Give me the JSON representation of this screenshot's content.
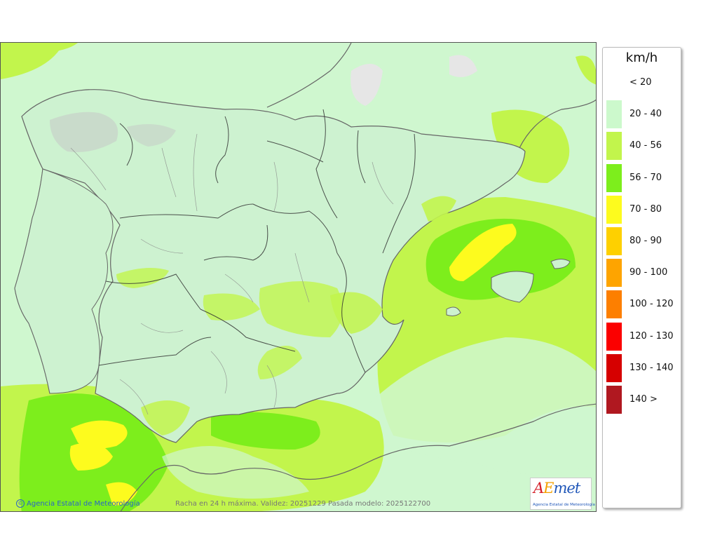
{
  "legend": {
    "unit": "km/h",
    "items": [
      {
        "label": "< 20",
        "color": "#ffffff"
      },
      {
        "label": "20 - 40",
        "color": "#ccf9cc"
      },
      {
        "label": "40 - 56",
        "color": "#c2f54c"
      },
      {
        "label": "56 - 70",
        "color": "#7dee1c"
      },
      {
        "label": "70 - 80",
        "color": "#fdfb1e"
      },
      {
        "label": "80 - 90",
        "color": "#fed000"
      },
      {
        "label": "90 - 100",
        "color": "#fea400"
      },
      {
        "label": "100 - 120",
        "color": "#fd7f00"
      },
      {
        "label": "120 - 130",
        "color": "#fb0000"
      },
      {
        "label": "130 - 140",
        "color": "#d60000"
      },
      {
        "label": "140 >",
        "color": "#b01820"
      }
    ]
  },
  "map": {
    "credit": "Agencia Estatal de Meteorología",
    "credit_icon": "copyright-icon",
    "caption": "Racha en 24 h máxima. Validez: 20251229 Pasada modelo: 2025122700"
  },
  "logo": {
    "mark_a": "A",
    "mark_e": "E",
    "mark_met": "met",
    "subtitle": "Agencia Estatal de Meteorología"
  }
}
